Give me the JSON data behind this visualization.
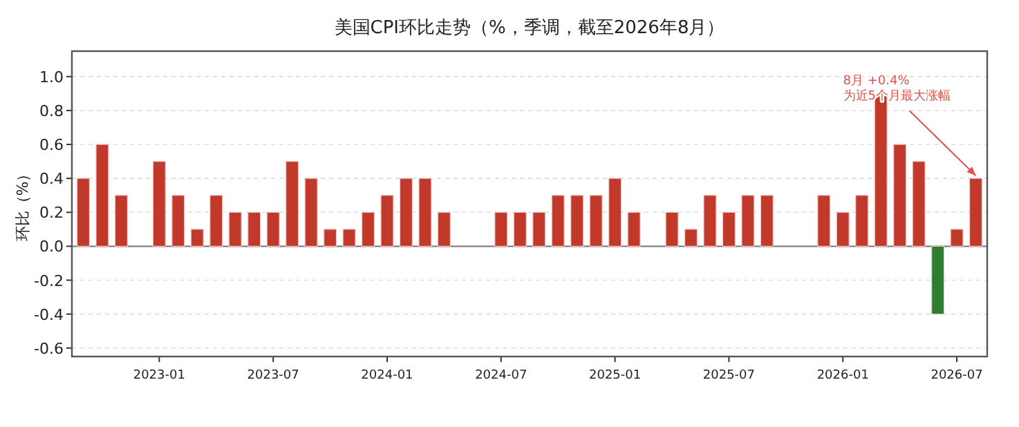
{
  "chart_data": {
    "type": "bar",
    "title": "美国CPI环比走势（%，季调，截至2026年8月）",
    "ylabel": "环比（%）",
    "x": [
      "2022-09",
      "2022-10",
      "2022-11",
      "2022-12",
      "2023-01",
      "2023-02",
      "2023-03",
      "2023-04",
      "2023-05",
      "2023-06",
      "2023-07",
      "2023-08",
      "2023-09",
      "2023-10",
      "2023-11",
      "2023-12",
      "2024-01",
      "2024-02",
      "2024-03",
      "2024-04",
      "2024-05",
      "2024-06",
      "2024-07",
      "2024-08",
      "2024-09",
      "2024-10",
      "2024-11",
      "2024-12",
      "2025-01",
      "2025-02",
      "2025-03",
      "2025-04",
      "2025-05",
      "2025-06",
      "2025-07",
      "2025-08",
      "2025-09",
      "2025-10",
      "2025-11",
      "2025-12",
      "2026-01",
      "2026-02",
      "2026-03",
      "2026-04",
      "2026-05",
      "2026-06",
      "2026-07",
      "2026-08"
    ],
    "values": [
      0.4,
      0.6,
      0.3,
      null,
      0.5,
      0.3,
      0.1,
      0.3,
      0.2,
      0.2,
      0.2,
      0.5,
      0.4,
      0.1,
      0.1,
      0.2,
      0.3,
      0.4,
      0.4,
      0.2,
      null,
      null,
      0.2,
      0.2,
      0.2,
      0.3,
      0.3,
      0.3,
      0.4,
      0.2,
      null,
      0.2,
      0.1,
      0.3,
      0.2,
      0.3,
      0.3,
      null,
      null,
      0.3,
      0.2,
      0.3,
      0.9,
      0.6,
      0.5,
      -0.4,
      0.1,
      0.4
    ],
    "colors": [
      "#c0392b",
      "#c0392b",
      "#c0392b",
      null,
      "#c0392b",
      "#c0392b",
      "#c0392b",
      "#c0392b",
      "#c0392b",
      "#c0392b",
      "#c0392b",
      "#c0392b",
      "#c0392b",
      "#c0392b",
      "#c0392b",
      "#c0392b",
      "#c0392b",
      "#c0392b",
      "#c0392b",
      "#c0392b",
      null,
      null,
      "#c0392b",
      "#c0392b",
      "#c0392b",
      "#c0392b",
      "#c0392b",
      "#c0392b",
      "#c0392b",
      "#c0392b",
      null,
      "#c0392b",
      "#c0392b",
      "#c0392b",
      "#c0392b",
      "#c0392b",
      "#c0392b",
      null,
      null,
      "#c0392b",
      "#c0392b",
      "#c0392b",
      "#c0392b",
      "#c0392b",
      "#c0392b",
      "#2e7d32",
      "#c0392b",
      "#c0392b"
    ],
    "xlim": [
      "2022-08-13",
      "2026-08-19"
    ],
    "xticks": [
      "2023-01",
      "2023-07",
      "2024-01",
      "2024-07",
      "2025-01",
      "2025-07",
      "2026-01",
      "2026-07"
    ],
    "ylim": [
      -0.65,
      1.15
    ],
    "yticks": [
      {
        "value": -0.6,
        "label": "-0.6"
      },
      {
        "value": -0.4,
        "label": "-0.4"
      },
      {
        "value": -0.2,
        "label": "-0.2"
      },
      {
        "value": 0,
        "label": "0.0"
      },
      {
        "value": 0.2,
        "label": "0.2"
      },
      {
        "value": 0.4,
        "label": "0.4"
      },
      {
        "value": 0.6,
        "label": "0.6"
      },
      {
        "value": 0.8,
        "label": "0.8"
      },
      {
        "value": 1.0,
        "label": "1.0"
      }
    ],
    "grid": "y",
    "ref_lines": [
      {
        "axis": "y",
        "value": 0,
        "color": "#777777"
      }
    ],
    "annotations": [
      {
        "text": "8月 +0.4%\n为近5个月最大涨幅",
        "x": "2026-08",
        "y": 0.4
      }
    ]
  }
}
